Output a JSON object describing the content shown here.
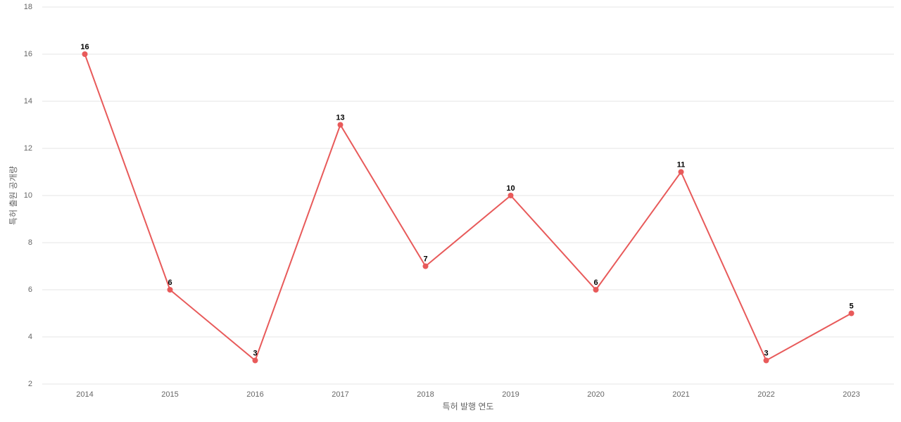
{
  "chart_data": {
    "type": "line",
    "x_label": "특허 발행 연도",
    "y_label": "특허 출원 공개량",
    "categories": [
      "2014",
      "2015",
      "2016",
      "2017",
      "2018",
      "2019",
      "2020",
      "2021",
      "2022",
      "2023"
    ],
    "series": [
      {
        "name": "특허 출원 공개량",
        "color": "#e85a5a",
        "values": [
          16,
          6,
          3,
          13,
          7,
          10,
          6,
          11,
          3,
          5
        ]
      }
    ],
    "ylim": [
      2,
      18
    ],
    "yticks": [
      2,
      4,
      6,
      8,
      10,
      12,
      14,
      16,
      18
    ],
    "grid": true,
    "data_labels": true
  }
}
